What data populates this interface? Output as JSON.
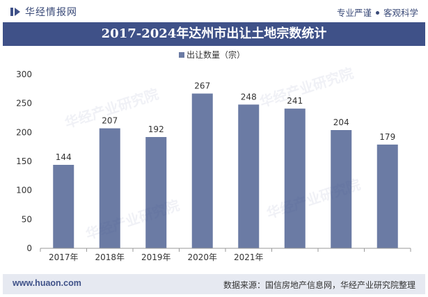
{
  "header": {
    "brand": "华经情报网",
    "tagline_left": "专业严谨",
    "tagline_right": "客观科学"
  },
  "footer": {
    "url": "www.huaon.com",
    "source": "数据来源：国信房地产信息网，华经产业研究院整理"
  },
  "watermark": "华经产业研究院",
  "colors": {
    "bar": "#6b7ba4",
    "title_bg": "#3f5188",
    "footer_bg": "#e6e9f1"
  },
  "chart_data": {
    "type": "bar",
    "title": "2017-2024年达州市出让土地宗数统计",
    "categories": [
      "2017年",
      "2018年",
      "2019年",
      "2020年",
      "2021年",
      "",
      "",
      ""
    ],
    "series": [
      {
        "name": "出让数量（宗）",
        "values": [
          144,
          207,
          192,
          267,
          248,
          241,
          204,
          179
        ]
      }
    ],
    "data_labels": [
      "144",
      "207",
      "192",
      "267",
      "248",
      "241",
      "204",
      "179"
    ],
    "ylim": [
      0,
      300
    ],
    "yticks": [
      0,
      50,
      100,
      150,
      200,
      250,
      300
    ],
    "legend_position": "top-center",
    "grid": false
  }
}
